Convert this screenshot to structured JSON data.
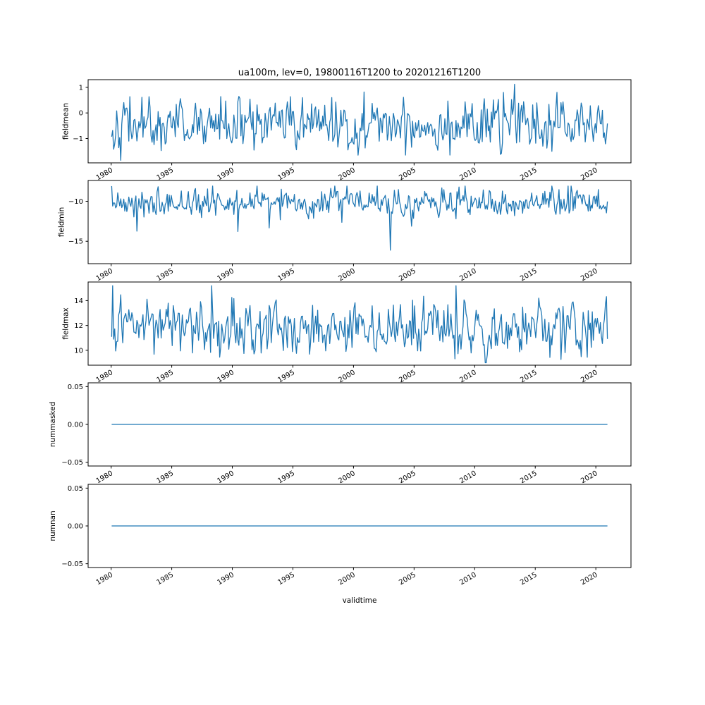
{
  "figure": {
    "background": "#ffffff",
    "line_color": "#1f77b4",
    "frame_color": "#000000"
  },
  "chart_data": {
    "type": "line",
    "title": "ua100m, lev=0, 19800116T1200 to 20201216T1200",
    "xlabel": "validtime",
    "legend": "none",
    "grid": false,
    "x_start": 1980.042,
    "x_end": 2020.958,
    "n_points": 492,
    "xlim": [
      1978.1,
      2022.9
    ],
    "x_ticks": [
      1980,
      1985,
      1990,
      1995,
      2000,
      2005,
      2010,
      2015,
      2020
    ],
    "x_tick_labels": [
      "1980",
      "1985",
      "1990",
      "1995",
      "2000",
      "2005",
      "2010",
      "2015",
      "2020"
    ],
    "subplots": [
      {
        "ylabel": "fieldmean",
        "ylim": [
          -1.95,
          1.3
        ],
        "ytick_values": [
          1,
          0,
          -1
        ],
        "ytick_labels": [
          "1",
          "0",
          "−1"
        ],
        "series": {
          "kind": "noisy",
          "mean": -0.45,
          "std": 0.5,
          "ar": 0.2,
          "min": -1.85,
          "max": 1.12,
          "seed": 42
        }
      },
      {
        "ylabel": "fieldmin",
        "ylim": [
          -17.8,
          -7.4
        ],
        "ytick_values": [
          -10,
          -15
        ],
        "ytick_labels": [
          "−10",
          "−15"
        ],
        "series": {
          "kind": "noisy",
          "mean": -10.2,
          "std": 0.85,
          "ar": 0.15,
          "min": -17.4,
          "max": -8.1,
          "seed": 7,
          "spike_prob": 0.012,
          "spike_scale": -4.0
        }
      },
      {
        "ylabel": "fieldmax",
        "ylim": [
          8.8,
          15.5
        ],
        "ytick_values": [
          14,
          12,
          10
        ],
        "ytick_labels": [
          "14",
          "12",
          "10"
        ],
        "series": {
          "kind": "noisy",
          "mean": 11.8,
          "std": 1.05,
          "ar": 0.15,
          "min": 9.0,
          "max": 15.2,
          "seed": 13,
          "spike_prob": 0.008,
          "spike_scale": 2.0
        }
      },
      {
        "ylabel": "nummasked",
        "ylim": [
          -0.055,
          0.055
        ],
        "ytick_values": [
          0.05,
          0,
          -0.05
        ],
        "ytick_labels": [
          "0.05",
          "0.00",
          "−0.05"
        ],
        "series": {
          "kind": "constant",
          "value": 0
        }
      },
      {
        "ylabel": "numnan",
        "ylim": [
          -0.055,
          0.055
        ],
        "ytick_values": [
          0.05,
          0,
          -0.05
        ],
        "ytick_labels": [
          "0.05",
          "0.00",
          "−0.05"
        ],
        "series": {
          "kind": "constant",
          "value": 0
        }
      }
    ]
  }
}
